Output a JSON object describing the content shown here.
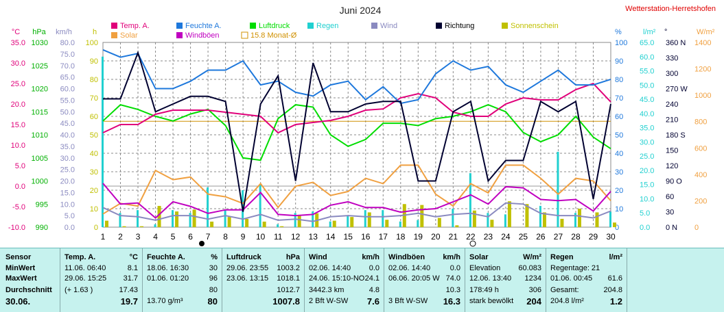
{
  "title": "Juni 2024",
  "station": "Wetterstation-Herretshofen",
  "colors": {
    "temp": "#e0007a",
    "solar": "#f0a040",
    "feuchte": "#1e78dc",
    "wind": "#8a8ac0",
    "windboen": "#c000c0",
    "luftdruck": "#00dd00",
    "regen": "#20d0d0",
    "richtung": "#000030",
    "sonne": "#c0c000",
    "monat": "#d09000",
    "title": "#222222",
    "station": "#e00000"
  },
  "legend": [
    {
      "label": "Temp. A.",
      "color": "#e0007a",
      "kind": "box"
    },
    {
      "label": "Solar",
      "color": "#f0a040",
      "kind": "box"
    },
    {
      "label": "Feuchte A.",
      "color": "#1e78dc",
      "kind": "box"
    },
    {
      "label": "Windböen",
      "color": "#c000c0",
      "kind": "box"
    },
    {
      "label": "Luftdruck",
      "color": "#00dd00",
      "kind": "box"
    },
    {
      "label": "15.8 Monat-Ø",
      "color": "#d09000",
      "kind": "outline"
    },
    {
      "label": "Regen",
      "color": "#20d0d0",
      "kind": "box"
    },
    {
      "label": "Wind",
      "color": "#8a8ac0",
      "kind": "box"
    },
    {
      "label": "Richtung",
      "color": "#000030",
      "kind": "box"
    },
    {
      "label": "Sonnenschein",
      "color": "#c0c000",
      "kind": "box"
    }
  ],
  "axes_left": [
    {
      "unit": "°C",
      "color": "#e0007a",
      "ticks": [
        "35.0",
        "30.0",
        "25.0",
        "20.0",
        "15.0",
        "10.0",
        "5.0",
        "0.0",
        "-5.0",
        "-10.0"
      ]
    },
    {
      "unit": "hPa",
      "color": "#00b000",
      "ticks": [
        "1030",
        "1025",
        "1020",
        "1015",
        "1010",
        "1005",
        "1000",
        "995",
        "990"
      ]
    },
    {
      "unit": "km/h",
      "color": "#8a8ac0",
      "ticks": [
        "80.0",
        "75.0",
        "70.0",
        "65.0",
        "60.0",
        "55.0",
        "50.0",
        "45.0",
        "40.0",
        "35.0",
        "30.0",
        "25.0",
        "20.0",
        "15.0",
        "10.0",
        "5.0",
        "0.0"
      ]
    },
    {
      "unit": "h",
      "color": "#c0c000",
      "ticks": [
        "100",
        "90",
        "80",
        "70",
        "60",
        "50",
        "40",
        "30",
        "20",
        "10",
        "0"
      ]
    }
  ],
  "axes_right": [
    {
      "unit": "%",
      "color": "#1e78dc",
      "ticks": [
        "100",
        "90",
        "80",
        "70",
        "60",
        "50",
        "40",
        "30",
        "20",
        "10",
        "0"
      ]
    },
    {
      "unit": "l/m²",
      "color": "#20d0d0",
      "ticks": [
        "65.0",
        "60.0",
        "55.0",
        "50.0",
        "45.0",
        "40.0",
        "35.0",
        "30.0",
        "25.0",
        "20.0",
        "15.0",
        "10.0",
        "5.0",
        "0.0"
      ]
    },
    {
      "unit": "°",
      "color": "#000030",
      "ticks": [
        "360 N",
        "330",
        "300",
        "270 W",
        "240",
        "210",
        "180 S",
        "150",
        "120",
        "90 O",
        "60",
        "30",
        "0 N"
      ]
    },
    {
      "unit": "W/m²",
      "color": "#f0a040",
      "ticks": [
        "1400",
        "1200",
        "1000",
        "800",
        "600",
        "400",
        "200",
        "0"
      ]
    }
  ],
  "chart_data": {
    "type": "line",
    "x": [
      1,
      2,
      3,
      4,
      5,
      6,
      7,
      8,
      9,
      10,
      11,
      12,
      13,
      14,
      15,
      16,
      17,
      18,
      19,
      20,
      21,
      22,
      23,
      24,
      25,
      26,
      27,
      28,
      29,
      30
    ],
    "series": [
      {
        "name": "Temp. A.",
        "unit": "°C",
        "axis": "temp",
        "values": [
          13.0,
          15.0,
          15.0,
          17.5,
          18.5,
          18.5,
          18.5,
          18.0,
          17.5,
          17.0,
          13.0,
          15.0,
          15.5,
          16.0,
          17.0,
          18.5,
          18.8,
          21.5,
          22.5,
          21.5,
          18.0,
          17.0,
          17.0,
          20.0,
          21.5,
          21.0,
          21.0,
          23.5,
          25.0,
          20.5
        ]
      },
      {
        "name": "Feuchte A.",
        "unit": "%",
        "axis": "feuchte",
        "values": [
          96,
          92,
          94,
          75,
          75,
          79,
          85,
          85,
          90,
          77,
          79,
          73,
          71,
          77,
          79,
          69,
          76,
          67,
          69,
          83,
          90,
          85,
          87,
          77,
          73,
          79,
          85,
          77,
          77,
          80
        ]
      },
      {
        "name": "Luftdruck",
        "unit": "hPa",
        "axis": "luftdruck",
        "values": [
          1013.0,
          1016.5,
          1015.5,
          1014.0,
          1013.0,
          1014.5,
          1015.5,
          1012.0,
          1005.0,
          1004.5,
          1013.5,
          1016.5,
          1016.0,
          1010.0,
          1007.5,
          1009.0,
          1012.5,
          1012.5,
          1012.0,
          1013.5,
          1014.0,
          1015.0,
          1016.5,
          1015.0,
          1010.5,
          1008.5,
          1010.0,
          1014.0,
          1009.5,
          1007.0
        ]
      },
      {
        "name": "Solar",
        "unit": "W/m²",
        "axis": "solar",
        "values": [
          100,
          180,
          160,
          430,
          360,
          380,
          250,
          230,
          180,
          330,
          150,
          310,
          340,
          240,
          270,
          370,
          330,
          470,
          470,
          250,
          160,
          330,
          260,
          470,
          470,
          370,
          250,
          370,
          350,
          200
        ]
      },
      {
        "name": "Wind",
        "unit": "km/h",
        "axis": "wind",
        "values": [
          8.5,
          5.0,
          4.5,
          3.0,
          5.0,
          5.0,
          3.5,
          5.0,
          3.5,
          5.5,
          3.0,
          3.5,
          2.5,
          4.5,
          5.0,
          4.5,
          4.5,
          5.0,
          6.0,
          4.5,
          5.5,
          6.0,
          4.5,
          10.5,
          10.0,
          6.0,
          5.0,
          5.0,
          4.0,
          7.0
        ]
      },
      {
        "name": "Windböen",
        "unit": "km/h",
        "axis": "wind",
        "values": [
          19.0,
          10.0,
          10.5,
          4.0,
          11.0,
          9.0,
          6.0,
          7.5,
          7.5,
          15.0,
          5.5,
          5.0,
          5.5,
          9.5,
          11.0,
          8.5,
          8.5,
          6.5,
          7.5,
          8.0,
          11.0,
          14.0,
          10.0,
          17.5,
          17.0,
          12.0,
          11.5,
          12.0,
          7.0,
          15.5
        ]
      },
      {
        "name": "Richtung",
        "unit": "°",
        "axis": "richtung",
        "values": [
          250,
          250,
          340,
          225,
          240,
          255,
          255,
          245,
          30,
          240,
          295,
          90,
          320,
          225,
          225,
          240,
          245,
          245,
          90,
          90,
          225,
          245,
          90,
          130,
          130,
          245,
          225,
          245,
          55,
          240
        ]
      },
      {
        "name": "Regen",
        "unit": "l/m²",
        "axis": "regen",
        "type": "bar",
        "values": [
          60.0,
          5.0,
          6.0,
          1.0,
          6.0,
          5.0,
          14.0,
          6.0,
          13.0,
          15.0,
          1.0,
          5.0,
          5.5,
          2.0,
          4.0,
          6.0,
          6.0,
          2.0,
          2.5,
          0.0,
          6.5,
          19.0,
          5.0,
          4.5,
          0.0,
          7.5,
          26.5,
          5.0,
          0.0,
          5.5
        ]
      },
      {
        "name": "Sonnenschein",
        "unit": "h",
        "axis": "sonne",
        "type": "bar",
        "values": [
          3.5,
          0.5,
          0.5,
          11.5,
          8.5,
          9.5,
          3.0,
          5.5,
          4.5,
          3.0,
          0.5,
          6.5,
          7.5,
          3.5,
          5.5,
          8.0,
          4.0,
          12.5,
          12.0,
          5.0,
          1.0,
          9.0,
          4.0,
          14.0,
          12.5,
          8.0,
          4.5,
          10.0,
          8.0,
          2.5
        ]
      }
    ],
    "reference_lines": [
      {
        "label": "15.8 Monat-Ø",
        "value": 15.8,
        "axis": "temp"
      }
    ],
    "axes": {
      "temp": {
        "min": -10,
        "max": 35
      },
      "luftdruck": {
        "min": 990,
        "max": 1030
      },
      "wind": {
        "min": 0,
        "max": 80
      },
      "sonne": {
        "min": 0,
        "max": 100
      },
      "feuchte": {
        "min": 0,
        "max": 100
      },
      "regen": {
        "min": 0,
        "max": 65
      },
      "richtung": {
        "min": 0,
        "max": 360
      },
      "solar": {
        "min": 0,
        "max": 1400
      }
    },
    "title": "Juni 2024",
    "xlabel": "",
    "grid": true,
    "legend": "top"
  },
  "table": {
    "columns": [
      {
        "head": [
          "Sensor"
        ],
        "rows": [
          [
            "MinWert"
          ],
          [
            "MaxWert"
          ],
          [
            "Durchschnitt"
          ],
          [
            "30.06."
          ]
        ]
      },
      {
        "head": [
          "Temp. A.",
          "°C"
        ],
        "rows": [
          [
            "11.06.  06:40",
            "8.1"
          ],
          [
            "29.06.  15:25",
            "31.7"
          ],
          [
            "(+ 1.63 )",
            "17.43"
          ],
          [
            "",
            "19.7"
          ]
        ]
      },
      {
        "head": [
          "Feuchte A.",
          "%"
        ],
        "rows": [
          [
            "18.06.  16:30",
            "30"
          ],
          [
            "01.06.  01:20",
            "96"
          ],
          [
            "",
            "80"
          ],
          [
            "13.70 g/m³",
            "80"
          ]
        ]
      },
      {
        "head": [
          "Luftdruck",
          "hPa"
        ],
        "rows": [
          [
            "29.06.  23:55",
            "1003.2"
          ],
          [
            "23.06.  13:15",
            "1018.1"
          ],
          [
            "",
            "1012.7"
          ],
          [
            "",
            "1007.8"
          ]
        ]
      },
      {
        "head": [
          "Wind",
          "km/h"
        ],
        "rows": [
          [
            "02.06.  14:40",
            "0.0"
          ],
          [
            "24.06.  15:10-NO",
            "24.1"
          ],
          [
            "3442.3 km",
            "4.8"
          ],
          [
            "2 Bft W-SW",
            "7.6"
          ]
        ]
      },
      {
        "head": [
          "Windböen",
          "km/h"
        ],
        "rows": [
          [
            "02.06.  14:40",
            "0.0"
          ],
          [
            "06.06.  20:05  W",
            "74.0"
          ],
          [
            "",
            "10.3"
          ],
          [
            "3 Bft W-SW",
            "16.3"
          ]
        ]
      },
      {
        "head": [
          "Solar",
          "W/m²"
        ],
        "rows": [
          [
            "Elevation",
            "60.083"
          ],
          [
            "12.06.  13:40",
            "1234"
          ],
          [
            "178:49 h",
            "306"
          ],
          [
            "stark bewölkt",
            "204"
          ]
        ]
      },
      {
        "head": [
          "Regen",
          "l/m²"
        ],
        "rows": [
          [
            "Regentage: 21",
            ""
          ],
          [
            "01.06.  00:45",
            "61.6"
          ],
          [
            "Gesamt:",
            "204.8"
          ],
          [
            "204.8 l/m²",
            "1.2"
          ]
        ]
      }
    ]
  }
}
